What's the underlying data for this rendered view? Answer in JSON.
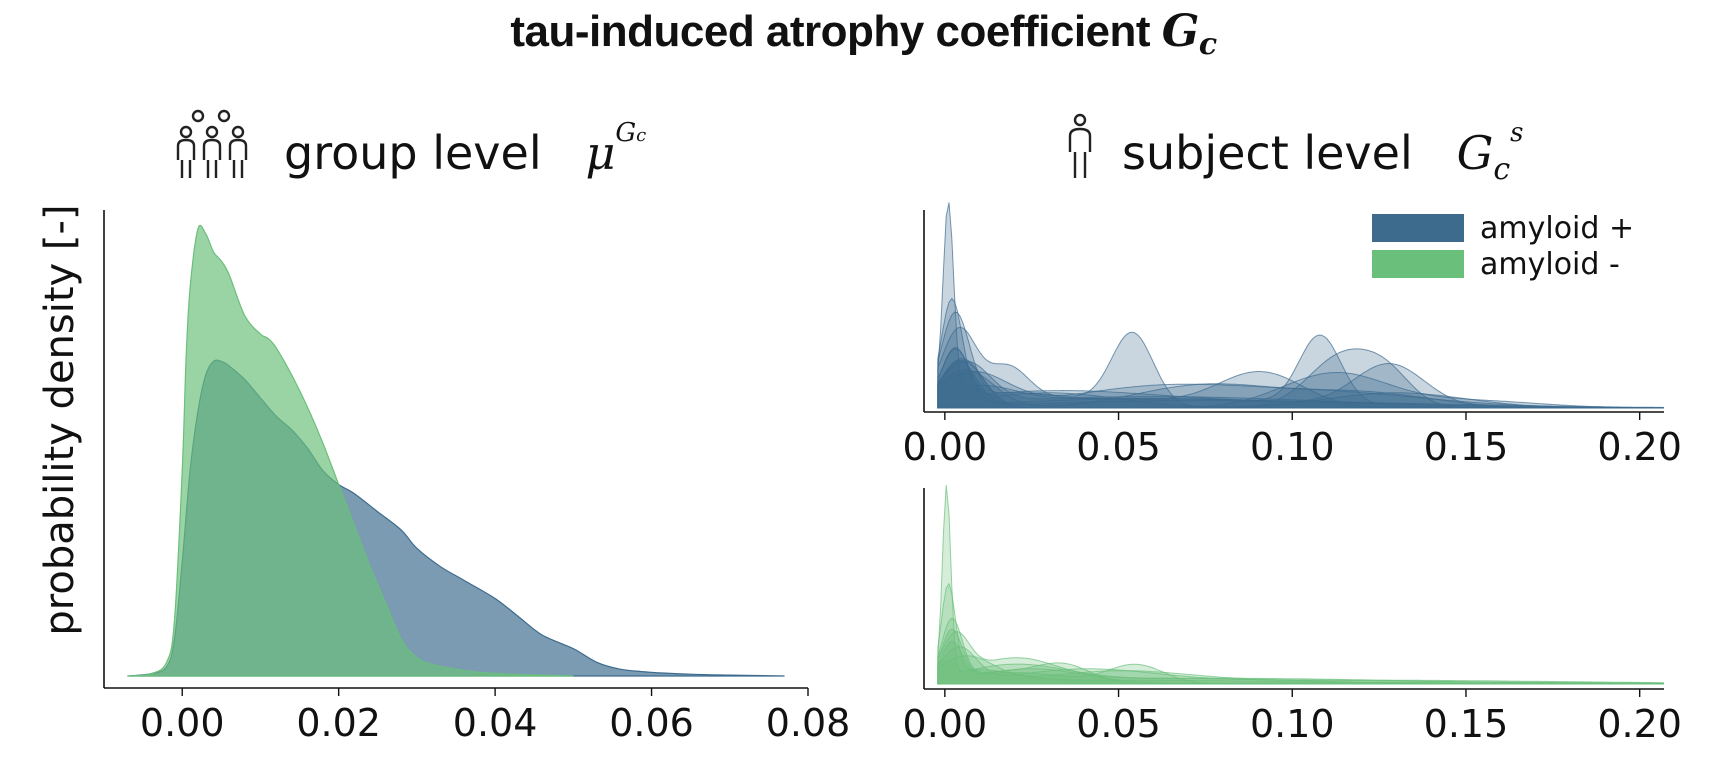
{
  "title": {
    "text": "tau-induced atrophy coefficient ",
    "symbol": "G",
    "symbol_sub": "c"
  },
  "panels": {
    "group": {
      "label": "group level",
      "symbol": "μ",
      "symbol_sup": "G",
      "symbol_sup_sub": "c",
      "icon": "group-people-icon"
    },
    "subject": {
      "label": "subject level",
      "symbol": "G",
      "symbol_sub": "c",
      "symbol_sup": "s",
      "icon": "person-icon"
    }
  },
  "ylabel": "probability density [-]",
  "colors": {
    "amyloid_pos": "#3d6b8e",
    "amyloid_neg": "#6abf7a"
  },
  "legend": {
    "placement": "top-right",
    "items": [
      {
        "label": "amyloid +",
        "color": "#3d6b8e"
      },
      {
        "label": "amyloid -",
        "color": "#6abf7a"
      }
    ]
  },
  "chart_data": [
    {
      "type": "area",
      "panel": "group level",
      "xlim": [
        -0.01,
        0.08
      ],
      "ylim": [
        0,
        1.0
      ],
      "xticks": [
        "0.00",
        "0.02",
        "0.04",
        "0.06",
        "0.08"
      ],
      "xtick_values": [
        0.0,
        0.02,
        0.04,
        0.06,
        0.08
      ],
      "grid": false,
      "series": [
        {
          "name": "amyloid +",
          "color": "#3d6b8e",
          "x": [
            -0.007,
            -0.004,
            -0.002,
            -0.001,
            0.0,
            0.001,
            0.002,
            0.003,
            0.004,
            0.005,
            0.006,
            0.008,
            0.01,
            0.012,
            0.014,
            0.016,
            0.018,
            0.02,
            0.022,
            0.025,
            0.028,
            0.03,
            0.033,
            0.036,
            0.04,
            0.043,
            0.046,
            0.05,
            0.053,
            0.056,
            0.06,
            0.065,
            0.07,
            0.077
          ],
          "y": [
            0.0,
            0.005,
            0.02,
            0.08,
            0.25,
            0.45,
            0.58,
            0.66,
            0.69,
            0.69,
            0.68,
            0.65,
            0.61,
            0.57,
            0.54,
            0.5,
            0.45,
            0.42,
            0.4,
            0.36,
            0.32,
            0.28,
            0.24,
            0.21,
            0.17,
            0.13,
            0.09,
            0.06,
            0.03,
            0.015,
            0.008,
            0.004,
            0.002,
            0.0
          ]
        },
        {
          "name": "amyloid -",
          "color": "#6abf7a",
          "x": [
            -0.007,
            -0.004,
            -0.002,
            -0.001,
            0.0,
            0.0005,
            0.001,
            0.002,
            0.003,
            0.004,
            0.005,
            0.006,
            0.008,
            0.01,
            0.011,
            0.012,
            0.014,
            0.016,
            0.018,
            0.02,
            0.022,
            0.024,
            0.026,
            0.028,
            0.03,
            0.032,
            0.035,
            0.038,
            0.042,
            0.046,
            0.05
          ],
          "y": [
            0.0,
            0.005,
            0.03,
            0.12,
            0.45,
            0.7,
            0.85,
            0.98,
            0.97,
            0.93,
            0.91,
            0.88,
            0.79,
            0.75,
            0.74,
            0.72,
            0.66,
            0.59,
            0.51,
            0.42,
            0.33,
            0.24,
            0.16,
            0.08,
            0.04,
            0.025,
            0.015,
            0.008,
            0.004,
            0.002,
            0.0
          ]
        }
      ]
    },
    {
      "type": "area",
      "panel": "subject level",
      "series_group": "amyloid +",
      "xlim": [
        -0.006,
        0.207
      ],
      "ylim": [
        0,
        1.0
      ],
      "xticks": [
        "0.00",
        "0.05",
        "0.10",
        "0.15",
        "0.20"
      ],
      "xtick_values": [
        0.0,
        0.05,
        0.1,
        0.15,
        0.2
      ],
      "grid": false,
      "color": "#3d6b8e",
      "peaks_description_values": {
        "x": [
          0.001,
          0.002,
          0.018,
          0.054,
          0.075,
          0.091,
          0.108,
          0.115,
          0.128
        ],
        "y": [
          1.0,
          0.52,
          0.26,
          0.4,
          0.16,
          0.22,
          0.4,
          0.33,
          0.26
        ]
      }
    },
    {
      "type": "area",
      "panel": "subject level",
      "series_group": "amyloid -",
      "xlim": [
        -0.006,
        0.207
      ],
      "ylim": [
        0,
        1.0
      ],
      "xticks": [
        "0.00",
        "0.05",
        "0.10",
        "0.15",
        "0.20"
      ],
      "xtick_values": [
        0.0,
        0.05,
        0.1,
        0.15,
        0.2
      ],
      "grid": false,
      "color": "#6abf7a",
      "peaks_description_values": {
        "x": [
          0.0005,
          0.001,
          0.002,
          0.02,
          0.034,
          0.055
        ],
        "y": [
          1.0,
          0.48,
          0.27,
          0.14,
          0.12,
          0.1
        ]
      }
    }
  ]
}
